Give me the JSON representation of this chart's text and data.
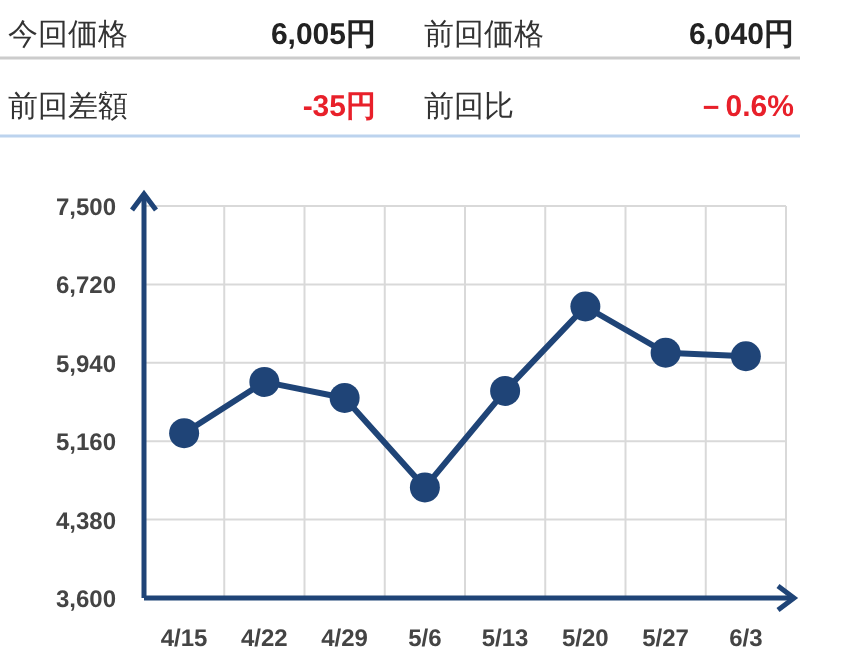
{
  "chart_data": [
    {
      "type": "other",
      "annotations": [
        "今回価格",
        "6,005円",
        "前回価格",
        "6,040円",
        "前回差額",
        "-35円",
        "前回比",
        "－0.6%"
      ]
    },
    {
      "type": "line",
      "categories": [
        "4/15",
        "4/22",
        "4/29",
        "5/6",
        "5/13",
        "5/20",
        "5/27",
        "6/3"
      ],
      "series": [
        {
          "color": "#1f4477",
          "values": [
            5240,
            5750,
            5590,
            4700,
            5660,
            6500,
            6040,
            6005
          ]
        }
      ],
      "ylim": [
        3600,
        7500
      ],
      "yticks": [
        {
          "value": 3600,
          "label": "3,600"
        },
        {
          "value": 4380,
          "label": "4,380"
        },
        {
          "value": 5160,
          "label": "5,160"
        },
        {
          "value": 5940,
          "label": "5,940"
        },
        {
          "value": 6720,
          "label": "6,720"
        },
        {
          "value": 7500,
          "label": "7,500"
        }
      ],
      "grid": true,
      "marker": "circle",
      "line_style": "solid"
    }
  ]
}
